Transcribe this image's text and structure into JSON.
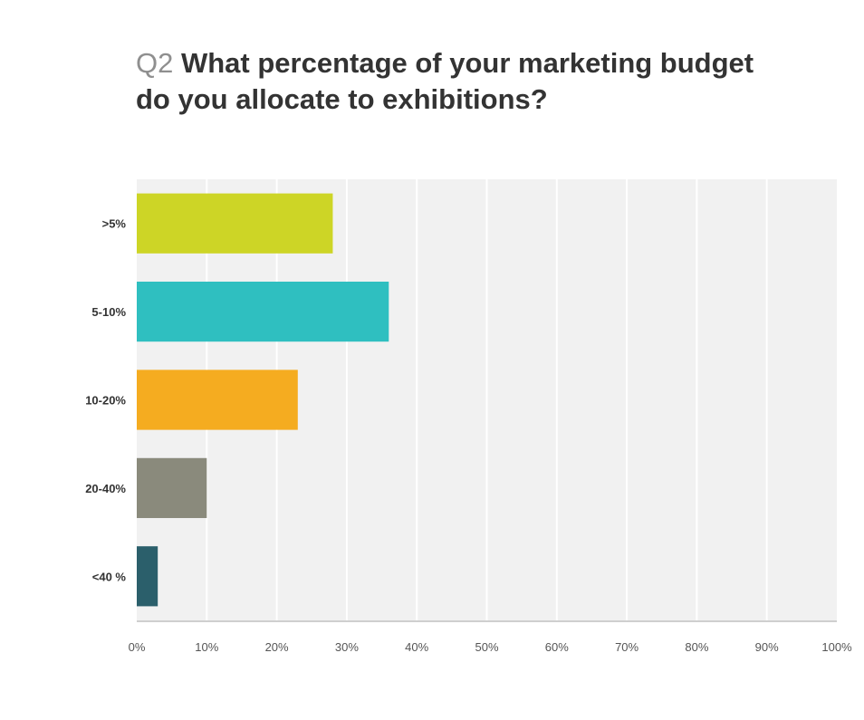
{
  "title": {
    "prefix": "Q2",
    "text": "What percentage of your marketing budget do you allocate to exhibitions?"
  },
  "chart_data": {
    "type": "bar",
    "orientation": "horizontal",
    "categories": [
      ">5%",
      "5-10%",
      "10-20%",
      "20-40%",
      "<40 %"
    ],
    "values": [
      28,
      36,
      23,
      10,
      3
    ],
    "colors": [
      "#cdd526",
      "#2fbfc0",
      "#f5ac20",
      "#8a8a7c",
      "#2b5f6b"
    ],
    "x_ticks": [
      "0%",
      "10%",
      "20%",
      "30%",
      "40%",
      "50%",
      "60%",
      "70%",
      "80%",
      "90%",
      "100%"
    ],
    "xlim": [
      0,
      100
    ],
    "grid": true,
    "plot_background": "#f1f1f1"
  }
}
